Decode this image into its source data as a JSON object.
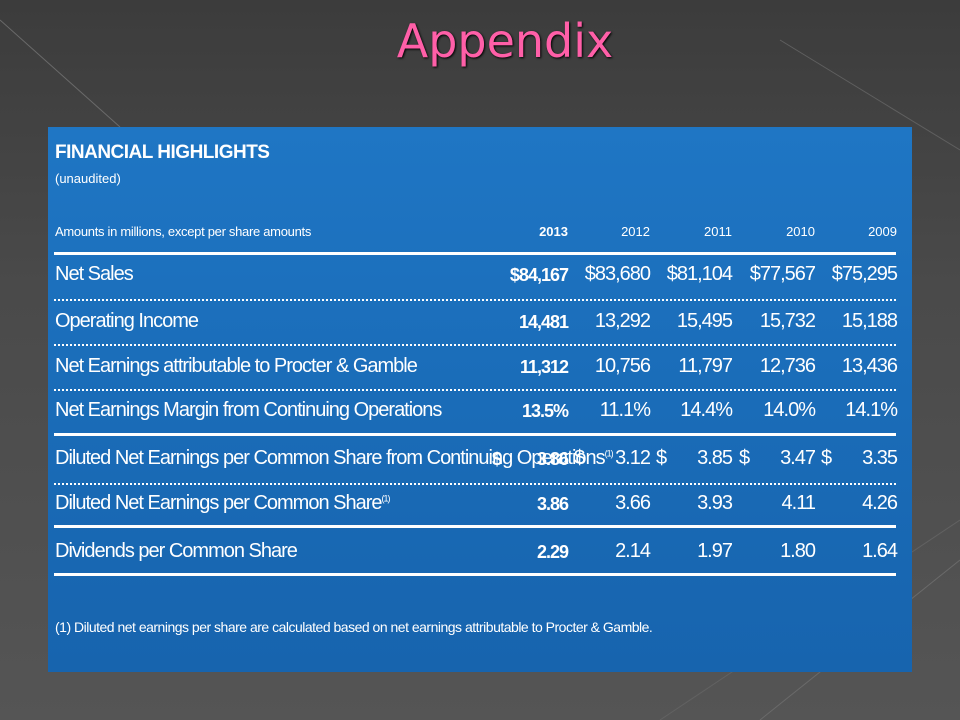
{
  "slide": {
    "title": "Appendix"
  },
  "table": {
    "title": "FINANCIAL HIGHLIGHTS",
    "subtitle": "(unaudited)",
    "units_note": "Amounts in millions, except per share amounts",
    "years": [
      "2013",
      "2012",
      "2011",
      "2010",
      "2009"
    ],
    "rows": [
      {
        "label": "Net Sales",
        "values": [
          "$84,167",
          "$83,680",
          "$81,104",
          "$77,567",
          "$75,295"
        ]
      },
      {
        "label": "Operating Income",
        "values": [
          "14,481",
          "13,292",
          "15,495",
          "15,732",
          "15,188"
        ]
      },
      {
        "label": "Net Earnings attributable to Procter & Gamble",
        "values": [
          "11,312",
          "10,756",
          "11,797",
          "12,736",
          "13,436"
        ]
      },
      {
        "label": "Net Earnings Margin from Continuing Operations",
        "values": [
          "13.5%",
          "11.1%",
          "14.4%",
          "14.0%",
          "14.1%"
        ]
      },
      {
        "label": "Diluted Net Earnings per Common Share from Continuing Operations",
        "sup": "(1)",
        "currency": "$",
        "values": [
          "3.86",
          "3.12",
          "3.85",
          "3.47",
          "3.35"
        ]
      },
      {
        "label": "Diluted Net Earnings per Common Share",
        "sup": "(1)",
        "values": [
          "3.86",
          "3.66",
          "3.93",
          "4.11",
          "4.26"
        ]
      },
      {
        "label": "Dividends per Common Share",
        "values": [
          "2.29",
          "2.14",
          "1.97",
          "1.80",
          "1.64"
        ]
      }
    ],
    "footnote": "(1) Diluted net earnings per share are calculated based on net earnings attributable to Procter & Gamble."
  }
}
